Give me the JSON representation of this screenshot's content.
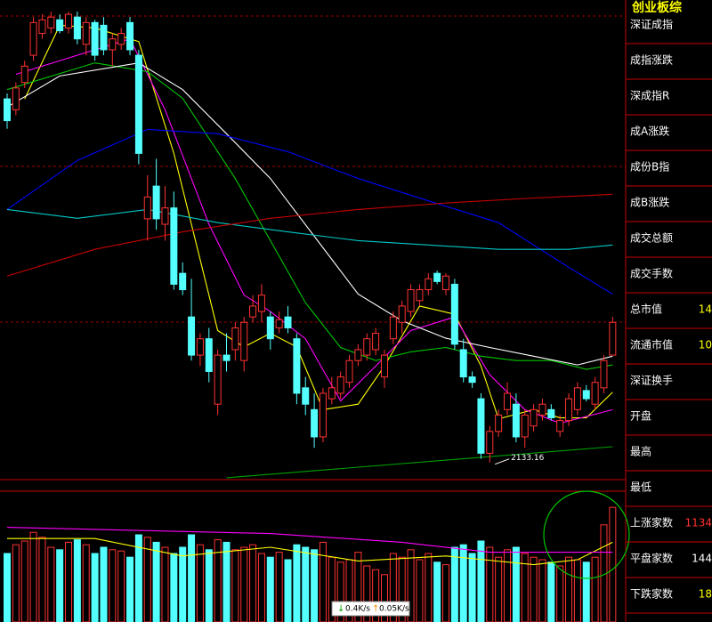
{
  "chart_data": {
    "type": "candlestick",
    "up_color": "#ff3232",
    "down_color": "#54ffff",
    "ylim": [
      2100,
      2965
    ],
    "candles": {
      "open": [
        2800,
        2780,
        2830,
        2880,
        2920,
        2930,
        2945,
        2930,
        2950,
        2900,
        2940,
        2935,
        2890,
        2900,
        2940,
        2880,
        2580,
        2640,
        2570,
        2600,
        2480,
        2400,
        2330,
        2360,
        2240,
        2330,
        2340,
        2320,
        2400,
        2410,
        2400,
        2380,
        2400,
        2360,
        2270,
        2230,
        2180,
        2250,
        2260,
        2280,
        2320,
        2330,
        2340,
        2290,
        2360,
        2390,
        2410,
        2430,
        2450,
        2480,
        2450,
        2460,
        2340,
        2290,
        2250,
        2150,
        2190,
        2230,
        2240,
        2180,
        2200,
        2220,
        2230,
        2190,
        2210,
        2230,
        2265,
        2240,
        2270,
        2330
      ],
      "high": [
        2810,
        2830,
        2870,
        2950,
        2955,
        2960,
        2955,
        2960,
        2960,
        2950,
        2945,
        2950,
        2920,
        2930,
        2950,
        2890,
        2660,
        2690,
        2640,
        2630,
        2500,
        2470,
        2370,
        2380,
        2340,
        2370,
        2390,
        2400,
        2440,
        2460,
        2410,
        2410,
        2420,
        2370,
        2290,
        2260,
        2270,
        2290,
        2300,
        2330,
        2350,
        2370,
        2380,
        2340,
        2410,
        2430,
        2460,
        2460,
        2480,
        2485,
        2480,
        2470,
        2360,
        2300,
        2260,
        2200,
        2230,
        2280,
        2260,
        2230,
        2240,
        2250,
        2240,
        2220,
        2260,
        2280,
        2275,
        2290,
        2330,
        2400
      ],
      "low": [
        2745,
        2770,
        2820,
        2870,
        2910,
        2920,
        2920,
        2920,
        2900,
        2880,
        2870,
        2880,
        2860,
        2890,
        2880,
        2680,
        2540,
        2560,
        2540,
        2450,
        2440,
        2320,
        2310,
        2280,
        2220,
        2300,
        2320,
        2300,
        2390,
        2390,
        2340,
        2370,
        2370,
        2240,
        2220,
        2160,
        2170,
        2240,
        2250,
        2270,
        2310,
        2320,
        2330,
        2270,
        2350,
        2370,
        2400,
        2420,
        2440,
        2460,
        2440,
        2340,
        2280,
        2270,
        2140,
        2133.16,
        2180,
        2220,
        2170,
        2160,
        2190,
        2210,
        2210,
        2180,
        2200,
        2220,
        2245,
        2230,
        2260,
        2330
      ],
      "close": [
        2760,
        2820,
        2860,
        2940,
        2945,
        2950,
        2925,
        2955,
        2910,
        2940,
        2880,
        2890,
        2910,
        2920,
        2890,
        2700,
        2620,
        2580,
        2600,
        2460,
        2450,
        2330,
        2360,
        2300,
        2330,
        2320,
        2380,
        2390,
        2420,
        2440,
        2360,
        2395,
        2380,
        2260,
        2240,
        2180,
        2260,
        2270,
        2290,
        2320,
        2340,
        2360,
        2370,
        2330,
        2400,
        2420,
        2450,
        2450,
        2470,
        2465,
        2475,
        2350,
        2290,
        2280,
        2150,
        2190,
        2220,
        2260,
        2180,
        2220,
        2230,
        2240,
        2215,
        2210,
        2250,
        2270,
        2250,
        2280,
        2320,
        2390
      ]
    },
    "moving_averages": [
      {
        "color": "#ffff00",
        "x": [
          2,
          6,
          10,
          15,
          19,
          24,
          27,
          30,
          33,
          36,
          40,
          43,
          47,
          51,
          54,
          56,
          60,
          63,
          66,
          69
        ],
        "values": [
          2800,
          2935,
          2930,
          2905,
          2700,
          2375,
          2345,
          2370,
          2345,
          2230,
          2240,
          2310,
          2420,
          2405,
          2310,
          2213,
          2230,
          2215,
          2215,
          2262
        ]
      },
      {
        "color": "#ff00ff",
        "x": [
          1,
          14,
          18,
          23,
          27,
          30,
          34,
          38,
          42,
          46,
          51,
          55,
          59,
          63,
          69
        ],
        "values": [
          2845,
          2910,
          2780,
          2570,
          2440,
          2410,
          2360,
          2246,
          2310,
          2375,
          2400,
          2294,
          2230,
          2205,
          2230
        ]
      },
      {
        "color": "#00c800",
        "x": [
          0,
          10,
          16,
          20,
          26,
          30,
          34,
          38,
          42,
          46,
          50,
          54,
          58,
          62,
          66,
          69
        ],
        "values": [
          2817,
          2866,
          2850,
          2801,
          2654,
          2540,
          2426,
          2344,
          2320,
          2336,
          2344,
          2328,
          2320,
          2320,
          2304,
          2312
        ]
      },
      {
        "color": "#ffffff",
        "x": [
          0,
          6,
          15,
          20,
          25,
          30,
          35,
          40,
          45,
          50,
          55,
          60,
          65,
          69
        ],
        "values": [
          2785,
          2842,
          2866,
          2817,
          2736,
          2654,
          2548,
          2442,
          2393,
          2361,
          2344,
          2328,
          2312,
          2328
        ]
      },
      {
        "color": "#0000ff",
        "x": [
          0,
          8,
          16,
          24,
          32,
          40,
          48,
          56,
          64,
          69
        ],
        "values": [
          2597,
          2687,
          2744,
          2736,
          2703,
          2654,
          2613,
          2573,
          2491,
          2442
        ]
      },
      {
        "color": "#00c8c8",
        "x": [
          0,
          8,
          16,
          24,
          32,
          40,
          48,
          56,
          64,
          69
        ],
        "values": [
          2597,
          2581,
          2597,
          2573,
          2556,
          2540,
          2532,
          2524,
          2524,
          2532
        ]
      },
      {
        "color": "#c80000",
        "x": [
          0,
          10,
          20,
          30,
          40,
          50,
          60,
          69
        ],
        "values": [
          2475,
          2524,
          2556,
          2581,
          2597,
          2609,
          2618,
          2625
        ]
      }
    ],
    "trendline": {
      "color": "#00a000",
      "x": [
        25,
        69
      ],
      "values": [
        2105,
        2162
      ]
    },
    "annotations": [
      {
        "x": 56,
        "value": 2133.16
      }
    ],
    "volume": {
      "ylim": [
        0,
        100
      ],
      "values": [
        55,
        62,
        65,
        72,
        68,
        60,
        58,
        64,
        66,
        62,
        55,
        60,
        58,
        57,
        52,
        70,
        68,
        64,
        60,
        55,
        60,
        70,
        62,
        58,
        66,
        64,
        58,
        60,
        62,
        55,
        52,
        56,
        50,
        62,
        60,
        58,
        64,
        52,
        48,
        50,
        56,
        45,
        42,
        38,
        55,
        52,
        58,
        50,
        55,
        48,
        46,
        60,
        62,
        55,
        65,
        60,
        52,
        58,
        60,
        55,
        52,
        50,
        48,
        45,
        52,
        50,
        48,
        52,
        78,
        92
      ],
      "moving_averages": [
        {
          "color": "#ffff00",
          "x": [
            0,
            10,
            20,
            30,
            40,
            50,
            60,
            65,
            69
          ],
          "values": [
            67,
            67,
            53,
            60,
            49,
            53,
            46,
            50,
            64
          ]
        },
        {
          "color": "#ff00ff",
          "x": [
            0,
            30,
            45,
            55,
            69
          ],
          "values": [
            76,
            71,
            64,
            56,
            56
          ]
        }
      ]
    }
  },
  "side_panel": {
    "title": "创业板综",
    "rows": [
      {
        "label": "深证成指"
      },
      {
        "label": "成指涨跌"
      },
      {
        "label": "深成指R"
      },
      {
        "label": "成A涨跌"
      },
      {
        "label": "成份B指"
      },
      {
        "label": "成B涨跌"
      },
      {
        "label": "成交总额"
      },
      {
        "label": "成交手数"
      },
      {
        "label": "总市值",
        "value": 14,
        "color": "#ffff00"
      },
      {
        "label": "流通市值",
        "value": 10,
        "color": "#ffff00"
      },
      {
        "label": "深证换手"
      },
      {
        "label": "开盘"
      },
      {
        "label": "最高"
      },
      {
        "label": "最低"
      },
      {
        "label": "上涨家数",
        "value": 1134,
        "color": "#ff3232"
      },
      {
        "label": "平盘家数",
        "value": 144,
        "color": "#ffffff"
      },
      {
        "label": "下跌家数",
        "value": 18,
        "color": "#ffff00"
      }
    ]
  },
  "status_bar": {
    "down_rate": "0.4K/s",
    "up_rate": "0.05K/s"
  }
}
